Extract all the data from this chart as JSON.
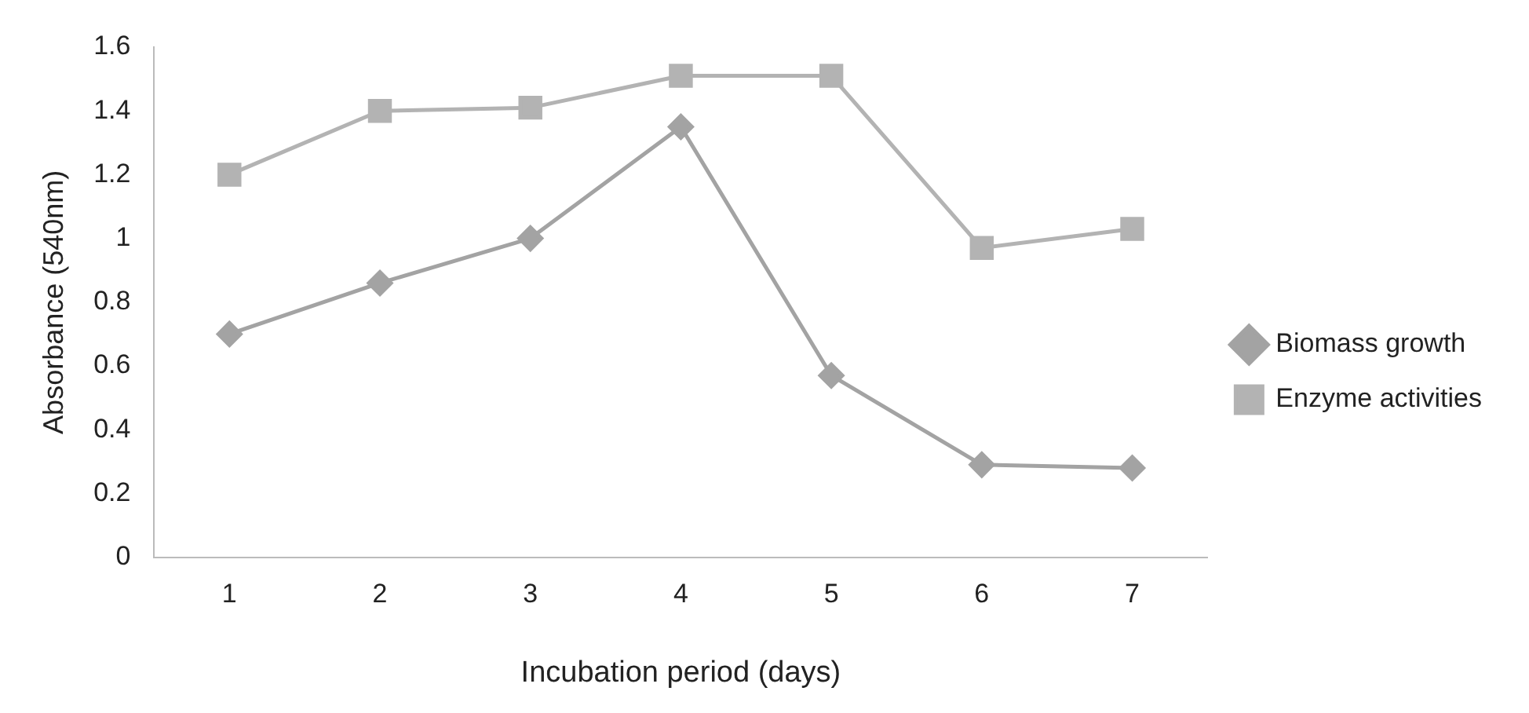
{
  "chart_data": {
    "type": "line",
    "xlabel": "Incubation period (days)",
    "ylabel": "Absorbance (540nm)",
    "categories": [
      "1",
      "2",
      "3",
      "4",
      "5",
      "6",
      "7"
    ],
    "ylim": [
      0,
      1.6
    ],
    "yticks": [
      0,
      0.2,
      0.4,
      0.6,
      0.8,
      1,
      1.2,
      1.4,
      1.6
    ],
    "grid": false,
    "legend": "right",
    "line_style": "solid",
    "series": [
      {
        "name": "Biomass growth",
        "color": "#a3a3a3",
        "marker": "diamond",
        "values": [
          0.7,
          0.86,
          1.0,
          1.35,
          0.57,
          0.29,
          0.28
        ]
      },
      {
        "name": "Enzyme activities",
        "color": "#b3b3b3",
        "marker": "square",
        "values": [
          1.2,
          1.4,
          1.41,
          1.51,
          1.51,
          0.97,
          1.03
        ]
      }
    ]
  }
}
